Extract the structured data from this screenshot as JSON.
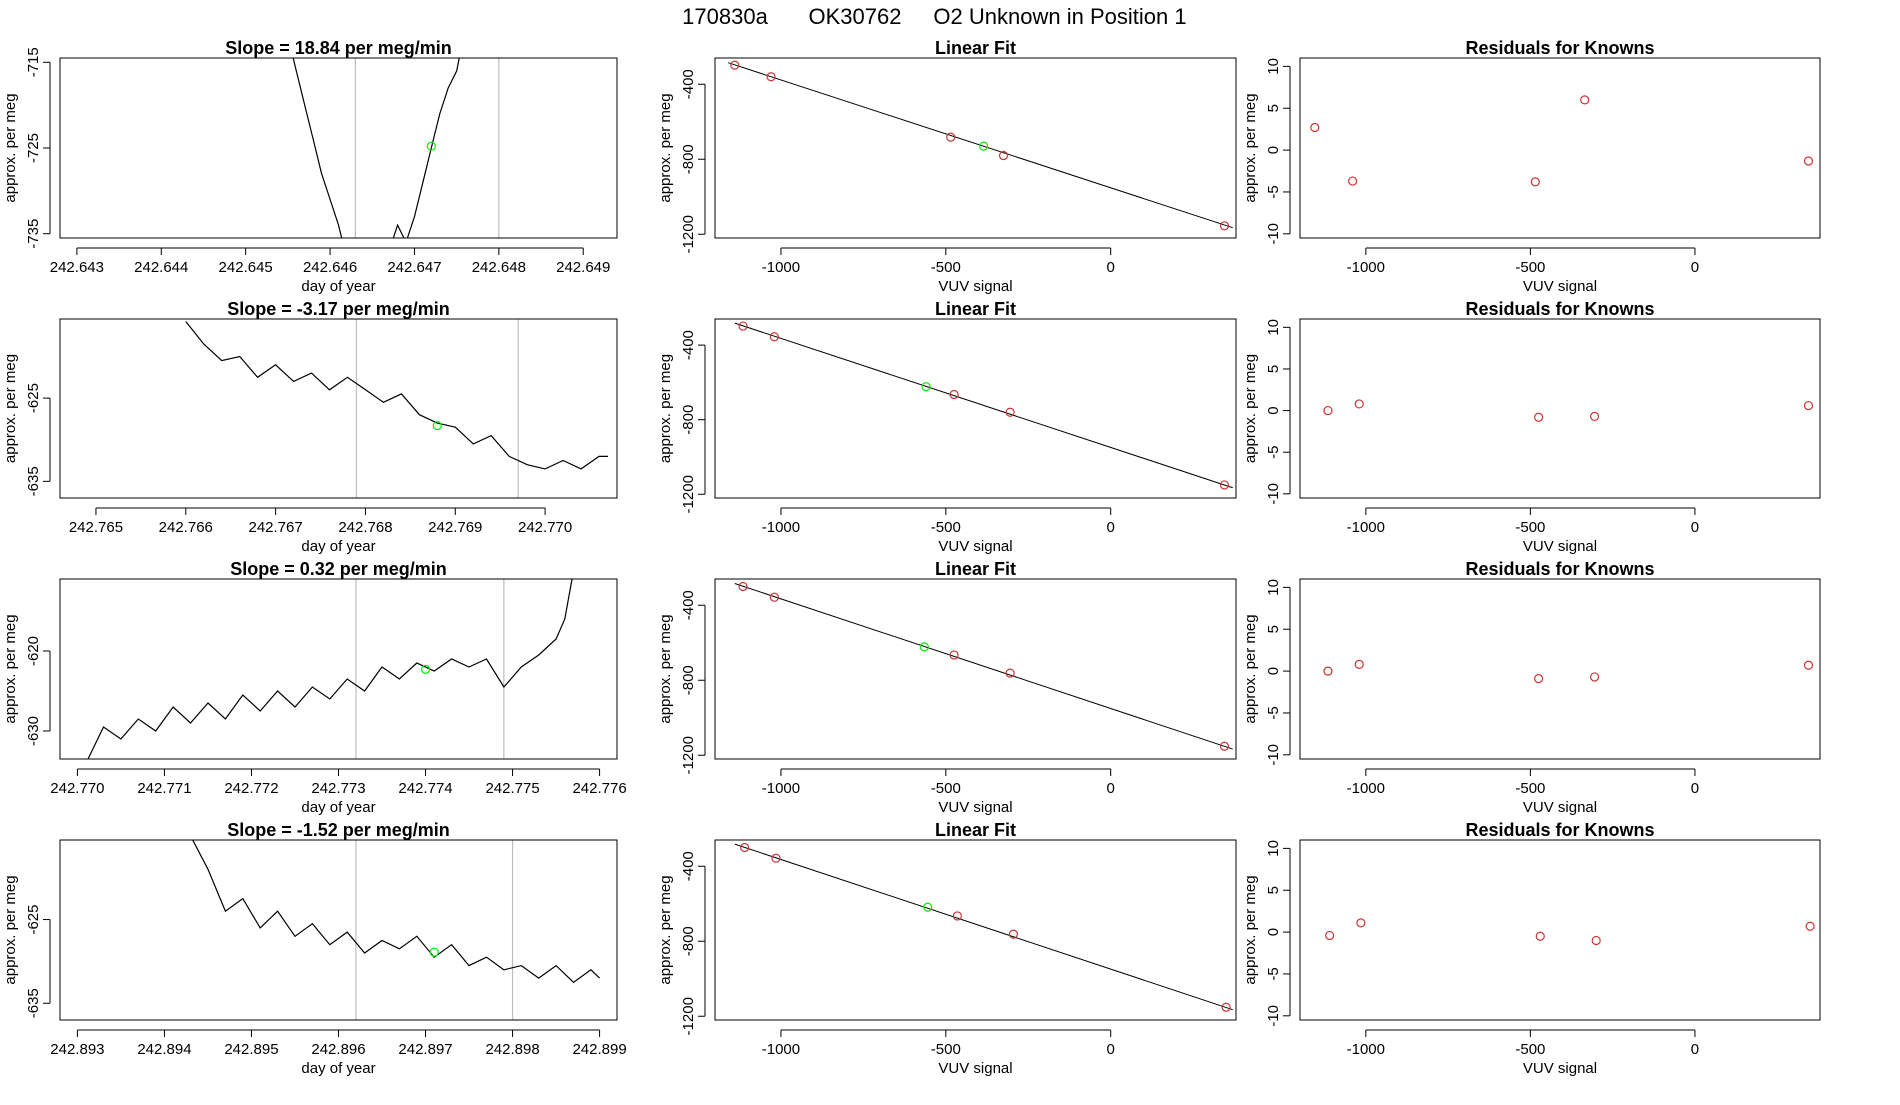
{
  "header": {
    "run_id": "170830a",
    "tank_id": "OK30762",
    "description": "O2 Unknown in Position  1"
  },
  "colors": {
    "trace": "#000000",
    "known_point": "#cd3333",
    "unknown_point": "#00ee00",
    "vline": "#bebebe",
    "axis": "#000000"
  },
  "chart_data": [
    {
      "type": "line",
      "panel": "time-series",
      "row": 1,
      "title": "Slope =  18.84  per meg/min",
      "xlabel": "day of year",
      "ylabel": "approx. per meg",
      "xlim": [
        242.6428,
        242.6494
      ],
      "ylim": [
        -735.5,
        -714.5
      ],
      "xticks": [
        242.643,
        242.644,
        242.645,
        242.646,
        242.647,
        242.648,
        242.649
      ],
      "xtick_labels": [
        "242.643",
        "242.644",
        "242.645",
        "242.646",
        "242.647",
        "242.648",
        "242.649"
      ],
      "yticks": [
        -715,
        -725,
        -735
      ],
      "ytick_labels": [
        "-715",
        "-725",
        "-735"
      ],
      "vlines": [
        242.6463,
        242.648
      ],
      "series": [
        {
          "name": "segment-a",
          "x": [
            242.6455,
            242.6456,
            242.6457,
            242.6458,
            242.6459,
            242.646,
            242.6461,
            242.6462
          ],
          "y": [
            -712,
            -716,
            -720,
            -724,
            -728,
            -731,
            -734,
            -738
          ]
        },
        {
          "name": "segment-b",
          "x": [
            242.6467,
            242.6468,
            242.6469,
            242.647,
            242.6471,
            242.6472,
            242.6473,
            242.6474,
            242.6475,
            242.6476
          ],
          "y": [
            -737,
            -734,
            -736,
            -733,
            -729,
            -725,
            -721,
            -718,
            -716,
            -711
          ]
        }
      ],
      "unknown_point": {
        "x": 242.6472,
        "y": -724.8
      }
    },
    {
      "type": "scatter",
      "panel": "linear-fit",
      "row": 1,
      "title": "Linear Fit",
      "xlabel": "VUV signal",
      "ylabel": "approx. per meg",
      "xlim": [
        -1200,
        380
      ],
      "ylim": [
        -1220,
        -260
      ],
      "xticks": [
        -1000,
        -500,
        0
      ],
      "xtick_labels": [
        "-1000",
        "-500",
        "0"
      ],
      "yticks": [
        -400,
        -800,
        -1200
      ],
      "ytick_labels": [
        "-400",
        "-800",
        "-1200"
      ],
      "known_points": {
        "x": [
          -1140,
          -1030,
          -485,
          -325,
          345
        ],
        "y": [
          -298,
          -360,
          -682,
          -780,
          -1155
        ]
      },
      "unknown_point": {
        "x": -385,
        "y": -730
      },
      "fit_line": {
        "x": [
          -1160,
          370
        ],
        "y": [
          -285,
          -1165
        ]
      }
    },
    {
      "type": "scatter",
      "panel": "residuals",
      "row": 1,
      "title": "Residuals for Knowns",
      "xlabel": "VUV signal",
      "ylabel": "approx. per meg",
      "xlim": [
        -1200,
        380
      ],
      "ylim": [
        -10.5,
        11
      ],
      "xticks": [
        -1000,
        -500,
        0
      ],
      "xtick_labels": [
        "-1000",
        "-500",
        "0"
      ],
      "yticks": [
        10,
        5,
        0,
        -5,
        -10
      ],
      "ytick_labels": [
        "10",
        "5",
        "0",
        "-5",
        "-10"
      ],
      "known_points": {
        "x": [
          -1155,
          -1040,
          -485,
          -335,
          345
        ],
        "y": [
          2.7,
          -3.7,
          -3.8,
          6.0,
          -1.3
        ]
      }
    },
    {
      "type": "line",
      "panel": "time-series",
      "row": 2,
      "title": "Slope =  -3.17  per meg/min",
      "xlabel": "day of year",
      "ylabel": "approx. per meg",
      "xlim": [
        242.7646,
        242.7708
      ],
      "ylim": [
        -637,
        -615.5
      ],
      "xticks": [
        242.765,
        242.766,
        242.767,
        242.768,
        242.769,
        242.77
      ],
      "xtick_labels": [
        "242.765",
        "242.766",
        "242.767",
        "242.768",
        "242.769",
        "242.770"
      ],
      "yticks": [
        -625,
        -635
      ],
      "ytick_labels": [
        "-625",
        "-635"
      ],
      "vlines": [
        242.7679,
        242.7697
      ],
      "series": [
        {
          "name": "trace",
          "x": [
            242.766,
            242.7662,
            242.7664,
            242.7666,
            242.7668,
            242.767,
            242.7672,
            242.7674,
            242.7676,
            242.7678,
            242.768,
            242.7682,
            242.7684,
            242.7686,
            242.7688,
            242.769,
            242.7692,
            242.7694,
            242.7696,
            242.7698,
            242.77,
            242.7702,
            242.7704,
            242.7706,
            242.7707
          ],
          "y": [
            -615.8,
            -618.5,
            -620.5,
            -620,
            -622.5,
            -621,
            -623,
            -622,
            -624,
            -622.5,
            -624,
            -625.5,
            -624.5,
            -627,
            -628,
            -628.5,
            -630.5,
            -629.5,
            -632,
            -633,
            -633.5,
            -632.5,
            -633.5,
            -632,
            -632
          ]
        }
      ],
      "unknown_point": {
        "x": 242.7688,
        "y": -628.3
      }
    },
    {
      "type": "scatter",
      "panel": "linear-fit",
      "row": 2,
      "title": "Linear Fit",
      "xlabel": "VUV signal",
      "ylabel": "approx. per meg",
      "xlim": [
        -1200,
        380
      ],
      "ylim": [
        -1220,
        -260
      ],
      "xticks": [
        -1000,
        -500,
        0
      ],
      "xtick_labels": [
        "-1000",
        "-500",
        "0"
      ],
      "yticks": [
        -400,
        -800,
        -1200
      ],
      "ytick_labels": [
        "-400",
        "-800",
        "-1200"
      ],
      "known_points": {
        "x": [
          -1115,
          -1020,
          -475,
          -305,
          345
        ],
        "y": [
          -298,
          -355,
          -665,
          -760,
          -1150
        ]
      },
      "unknown_point": {
        "x": -560,
        "y": -623
      },
      "fit_line": {
        "x": [
          -1140,
          370
        ],
        "y": [
          -282,
          -1165
        ]
      }
    },
    {
      "type": "scatter",
      "panel": "residuals",
      "row": 2,
      "title": "Residuals for Knowns",
      "xlabel": "VUV signal",
      "ylabel": "approx. per meg",
      "xlim": [
        -1200,
        380
      ],
      "ylim": [
        -10.5,
        11
      ],
      "xticks": [
        -1000,
        -500,
        0
      ],
      "xtick_labels": [
        "-1000",
        "-500",
        "0"
      ],
      "yticks": [
        10,
        5,
        0,
        -5,
        -10
      ],
      "ytick_labels": [
        "10",
        "5",
        "0",
        "-5",
        "-10"
      ],
      "known_points": {
        "x": [
          -1115,
          -1020,
          -475,
          -305,
          345
        ],
        "y": [
          0.0,
          0.8,
          -0.8,
          -0.7,
          0.6
        ]
      }
    },
    {
      "type": "line",
      "panel": "time-series",
      "row": 3,
      "title": "Slope =  0.32  per meg/min",
      "xlabel": "day of year",
      "ylabel": "approx. per meg",
      "xlim": [
        242.7698,
        242.7762
      ],
      "ylim": [
        -633.5,
        -611
      ],
      "xticks": [
        242.77,
        242.771,
        242.772,
        242.773,
        242.774,
        242.775,
        242.776
      ],
      "xtick_labels": [
        "242.770",
        "242.771",
        "242.772",
        "242.773",
        "242.774",
        "242.775",
        "242.776"
      ],
      "yticks": [
        -620,
        -630
      ],
      "ytick_labels": [
        "-620",
        "-630"
      ],
      "vlines": [
        242.7732,
        242.7749
      ],
      "series": [
        {
          "name": "trace",
          "x": [
            242.7701,
            242.7703,
            242.7705,
            242.7707,
            242.7709,
            242.7711,
            242.7713,
            242.7715,
            242.7717,
            242.7719,
            242.7721,
            242.7723,
            242.7725,
            242.7727,
            242.7729,
            242.7731,
            242.7733,
            242.7735,
            242.7737,
            242.7739,
            242.7741,
            242.7743,
            242.7745,
            242.7747,
            242.7749,
            242.7751,
            242.7753,
            242.7755,
            242.7756,
            242.7757
          ],
          "y": [
            -634,
            -629.5,
            -631,
            -628.5,
            -630,
            -627,
            -629,
            -626.5,
            -628.5,
            -625.5,
            -627.5,
            -625,
            -627,
            -624.5,
            -626,
            -623.5,
            -625,
            -622,
            -623.5,
            -621.5,
            -622.5,
            -621,
            -622,
            -621,
            -624.5,
            -622,
            -620.5,
            -618.5,
            -616,
            -610
          ]
        }
      ],
      "unknown_point": {
        "x": 242.774,
        "y": -622.3
      }
    },
    {
      "type": "scatter",
      "panel": "linear-fit",
      "row": 3,
      "title": "Linear Fit",
      "xlabel": "VUV signal",
      "ylabel": "approx. per meg",
      "xlim": [
        -1200,
        380
      ],
      "ylim": [
        -1220,
        -260
      ],
      "xticks": [
        -1000,
        -500,
        0
      ],
      "xtick_labels": [
        "-1000",
        "-500",
        "0"
      ],
      "yticks": [
        -400,
        -800,
        -1200
      ],
      "ytick_labels": [
        "-400",
        "-800",
        "-1200"
      ],
      "known_points": {
        "x": [
          -1115,
          -1020,
          -475,
          -305,
          345
        ],
        "y": [
          -300,
          -357,
          -665,
          -762,
          -1152
        ]
      },
      "unknown_point": {
        "x": -565,
        "y": -622
      },
      "fit_line": {
        "x": [
          -1140,
          370
        ],
        "y": [
          -284,
          -1167
        ]
      }
    },
    {
      "type": "scatter",
      "panel": "residuals",
      "row": 3,
      "title": "Residuals for Knowns",
      "xlabel": "VUV signal",
      "ylabel": "approx. per meg",
      "xlim": [
        -1200,
        380
      ],
      "ylim": [
        -10.5,
        11
      ],
      "xticks": [
        -1000,
        -500,
        0
      ],
      "xtick_labels": [
        "-1000",
        "-500",
        "0"
      ],
      "yticks": [
        10,
        5,
        0,
        -5,
        -10
      ],
      "ytick_labels": [
        "10",
        "5",
        "0",
        "-5",
        "-10"
      ],
      "known_points": {
        "x": [
          -1115,
          -1020,
          -475,
          -305,
          345
        ],
        "y": [
          0.0,
          0.8,
          -0.9,
          -0.7,
          0.7
        ]
      }
    },
    {
      "type": "line",
      "panel": "time-series",
      "row": 4,
      "title": "Slope =  -1.52  per meg/min",
      "xlabel": "day of year",
      "ylabel": "approx. per meg",
      "xlim": [
        242.8928,
        242.8992
      ],
      "ylim": [
        -637,
        -615.5
      ],
      "xticks": [
        242.893,
        242.894,
        242.895,
        242.896,
        242.897,
        242.898,
        242.899
      ],
      "xtick_labels": [
        "242.893",
        "242.894",
        "242.895",
        "242.896",
        "242.897",
        "242.898",
        "242.899"
      ],
      "yticks": [
        -625,
        -635
      ],
      "ytick_labels": [
        "-625",
        "-635"
      ],
      "vlines": [
        242.8962,
        242.898
      ],
      "series": [
        {
          "name": "trace",
          "x": [
            242.8943,
            242.8945,
            242.8947,
            242.8949,
            242.8951,
            242.8953,
            242.8955,
            242.8957,
            242.8959,
            242.8961,
            242.8963,
            242.8965,
            242.8967,
            242.8969,
            242.8971,
            242.8973,
            242.8975,
            242.8977,
            242.8979,
            242.8981,
            242.8983,
            242.8985,
            242.8987,
            242.8989,
            242.899
          ],
          "y": [
            -615,
            -619,
            -624,
            -622.5,
            -626,
            -624,
            -627,
            -625.5,
            -628,
            -626.5,
            -629,
            -627.5,
            -628.5,
            -627,
            -629.5,
            -628,
            -630.5,
            -629.5,
            -631,
            -630.5,
            -632,
            -630.5,
            -632.5,
            -631,
            -632
          ]
        }
      ],
      "unknown_point": {
        "x": 242.8971,
        "y": -628.9
      }
    },
    {
      "type": "scatter",
      "panel": "linear-fit",
      "row": 4,
      "title": "Linear Fit",
      "xlabel": "VUV signal",
      "ylabel": "approx. per meg",
      "xlim": [
        -1200,
        380
      ],
      "ylim": [
        -1220,
        -260
      ],
      "xticks": [
        -1000,
        -500,
        0
      ],
      "xtick_labels": [
        "-1000",
        "-500",
        "0"
      ],
      "yticks": [
        -400,
        -800,
        -1200
      ],
      "ytick_labels": [
        "-400",
        "-800",
        "-1200"
      ],
      "known_points": {
        "x": [
          -1110,
          -1015,
          -465,
          -295,
          350
        ],
        "y": [
          -300,
          -357,
          -665,
          -762,
          -1152
        ]
      },
      "unknown_point": {
        "x": -555,
        "y": -618
      },
      "fit_line": {
        "x": [
          -1140,
          370
        ],
        "y": [
          -282,
          -1165
        ]
      }
    },
    {
      "type": "scatter",
      "panel": "residuals",
      "row": 4,
      "title": "Residuals for Knowns",
      "xlabel": "VUV signal",
      "ylabel": "approx. per meg",
      "xlim": [
        -1200,
        380
      ],
      "ylim": [
        -10.5,
        11
      ],
      "xticks": [
        -1000,
        -500,
        0
      ],
      "xtick_labels": [
        "-1000",
        "-500",
        "0"
      ],
      "yticks": [
        10,
        5,
        0,
        -5,
        -10
      ],
      "ytick_labels": [
        "10",
        "5",
        "0",
        "-5",
        "-10"
      ],
      "known_points": {
        "x": [
          -1110,
          -1015,
          -470,
          -300,
          350
        ],
        "y": [
          -0.4,
          1.1,
          -0.5,
          -1.0,
          0.7
        ]
      }
    }
  ]
}
